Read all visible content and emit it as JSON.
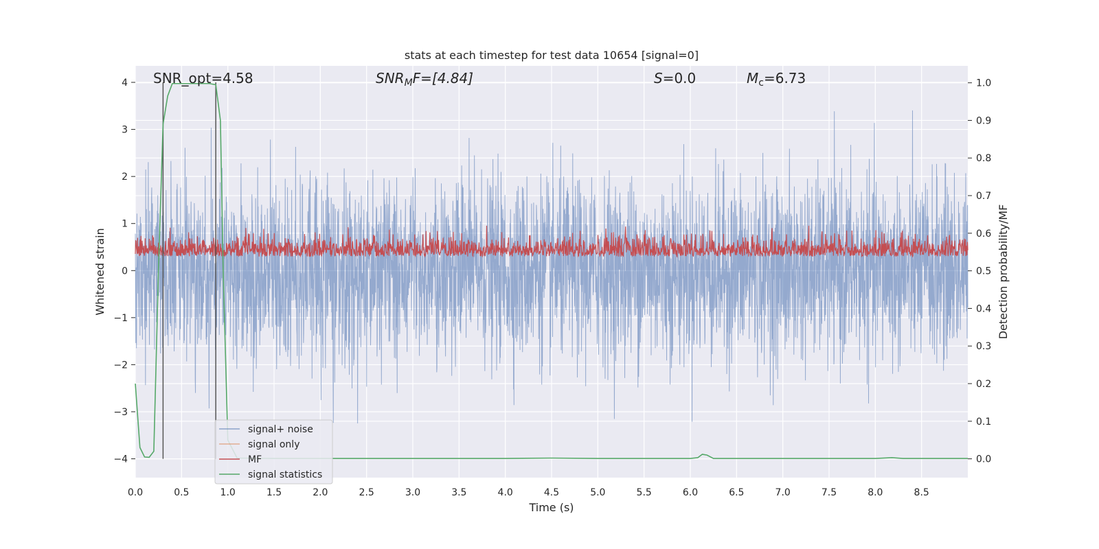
{
  "chart_data": {
    "type": "line",
    "title": "stats at each timestep for test data 10654 [signal=0]",
    "xlabel": "Time (s)",
    "ylabel_left": "Whitened strain",
    "ylabel_right": "Detection probability/MF",
    "xlim": [
      0.0,
      9.0
    ],
    "ylim_left": [
      -4.4,
      4.35
    ],
    "ylim_right": [
      -0.05,
      1.045
    ],
    "x_ticks": [
      "0.0",
      "0.5",
      "1.0",
      "1.5",
      "2.0",
      "2.5",
      "3.0",
      "3.5",
      "4.0",
      "4.5",
      "5.0",
      "5.5",
      "6.0",
      "6.5",
      "7.0",
      "7.5",
      "8.0",
      "8.5"
    ],
    "y_ticks_left": [
      "4",
      "3",
      "2",
      "1",
      "0",
      "−1",
      "−2",
      "−3",
      "−4"
    ],
    "y_ticks_right": [
      "1.0",
      "0.9",
      "0.8",
      "0.7",
      "0.6",
      "0.5",
      "0.4",
      "0.3",
      "0.2",
      "0.1",
      "0.0"
    ],
    "grid": true,
    "legend_position": "lower-left",
    "series": [
      {
        "name": "signal+ noise",
        "color": "#4c72b0",
        "axis": "left",
        "description_values": "noise strain samples, amplitude roughly within -3.5 to 4"
      },
      {
        "name": "signal only",
        "color": "#dd8452",
        "axis": "left",
        "values": []
      },
      {
        "name": "MF",
        "color": "#c44e52",
        "axis": "right",
        "description_values": "matched-filter output fluctuating about 0.5-0.6"
      },
      {
        "name": "signal statistics",
        "color": "#55a868",
        "axis": "right",
        "x": [
          0.0,
          0.05,
          0.1,
          0.15,
          0.2,
          0.25,
          0.3,
          0.35,
          0.4,
          0.5,
          0.6,
          0.7,
          0.8,
          0.87,
          0.92,
          0.95,
          1.0,
          1.1,
          1.5,
          2.0,
          3.0,
          4.0,
          4.5,
          5.0,
          6.0,
          6.08,
          6.13,
          6.18,
          6.25,
          7.0,
          8.0,
          8.18,
          8.3,
          9.0
        ],
        "y": [
          0.2,
          0.03,
          0.005,
          0.004,
          0.02,
          0.5,
          0.89,
          0.965,
          0.998,
          0.998,
          0.998,
          0.998,
          0.998,
          0.995,
          0.9,
          0.5,
          0.05,
          0.002,
          0.001,
          0.001,
          0.001,
          0.001,
          0.002,
          0.001,
          0.001,
          0.003,
          0.012,
          0.01,
          0.001,
          0.001,
          0.001,
          0.003,
          0.001,
          0.001
        ]
      }
    ],
    "vertical_markers_x": [
      0.3,
      0.87
    ],
    "annotations": [
      {
        "label": "SNR_opt=4.58"
      },
      {
        "label": "SNR_MF=[4.84]"
      },
      {
        "label": "S=0.0"
      },
      {
        "label": "M_c=6.73"
      }
    ]
  },
  "legend": {
    "items": [
      "signal+ noise",
      "signal only",
      "MF",
      "signal statistics"
    ]
  },
  "annotation_text": {
    "snr_opt": "SNR_opt=4.58",
    "snr_mf_main": "SNR",
    "snr_mf_sub": "M",
    "snr_mf_rest": "F=[4.84]",
    "s_main": "S",
    "s_rest": "=0.0",
    "mc_main": "M",
    "mc_sub": "c",
    "mc_rest": "=6.73"
  }
}
